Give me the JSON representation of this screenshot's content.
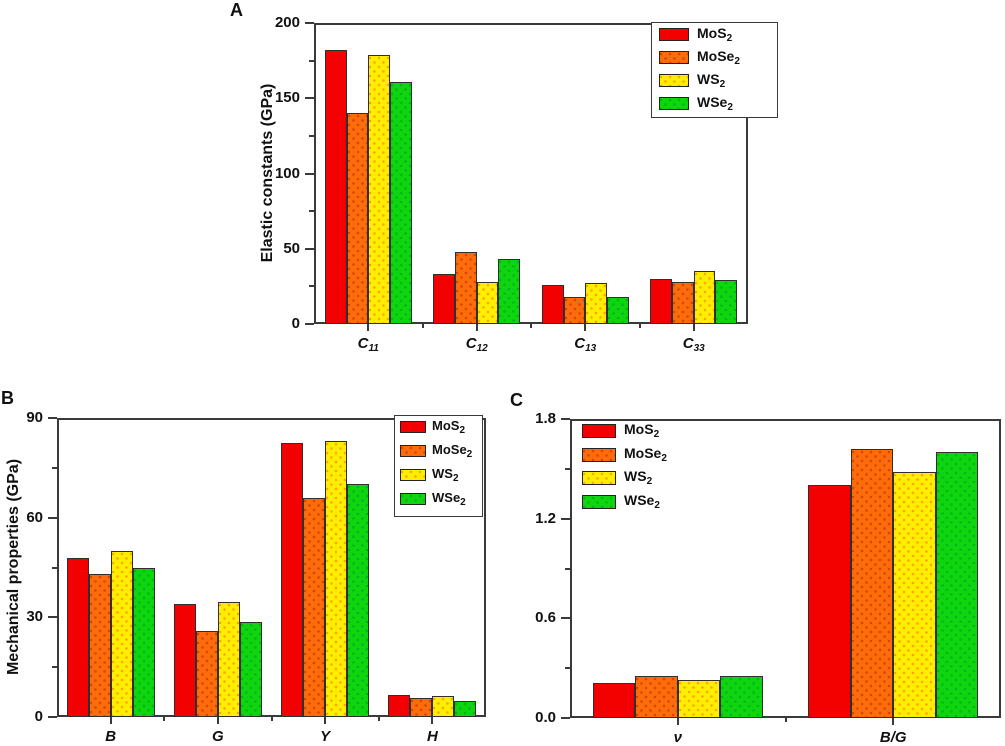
{
  "figure": {
    "axis_color": "#3a3a3a",
    "text_color": "#111111",
    "background": "#ffffff"
  },
  "chart_data": [
    {
      "panel": "A",
      "type": "bar",
      "title": "",
      "xlabel": "",
      "ylabel": "Elastic constants (GPa)",
      "ylim": [
        0,
        200
      ],
      "ytick_labels": [
        "0",
        "50",
        "100",
        "150",
        "200"
      ],
      "ytick_values": [
        0,
        50,
        100,
        150,
        200
      ],
      "yminor_values": [
        25,
        75,
        125,
        175
      ],
      "grid": false,
      "legend_pos": "upper-right",
      "legend_box": true,
      "categories": [
        {
          "base": "C",
          "sub": "11"
        },
        {
          "base": "C",
          "sub": "12"
        },
        {
          "base": "C",
          "sub": "13"
        },
        {
          "base": "C",
          "sub": "33"
        }
      ],
      "series": [
        {
          "name": {
            "base": "MoS",
            "sub": "2"
          },
          "color": "#f30000",
          "pattern": "solid",
          "dot_color": "",
          "values": [
            182,
            33,
            26,
            30
          ]
        },
        {
          "name": {
            "base": "MoSe",
            "sub": "2"
          },
          "color": "#fb6c0a",
          "pattern": "dots",
          "dot_color": "#dd3f00",
          "values": [
            140,
            48,
            18,
            28
          ]
        },
        {
          "name": {
            "base": "WS",
            "sub": "2"
          },
          "color": "#ffee00",
          "pattern": "dots",
          "dot_color": "#ffa200",
          "values": [
            179,
            28,
            27,
            35
          ]
        },
        {
          "name": {
            "base": "WSe",
            "sub": "2"
          },
          "color": "#0ed50e",
          "pattern": "dots",
          "dot_color": "#00b41e",
          "values": [
            161,
            43,
            18,
            29
          ]
        }
      ]
    },
    {
      "panel": "B",
      "type": "bar",
      "title": "",
      "xlabel": "",
      "ylabel": "Mechanical properties (GPa)",
      "ylim": [
        0,
        90
      ],
      "ytick_labels": [
        "0",
        "30",
        "60",
        "90"
      ],
      "ytick_values": [
        0,
        30,
        60,
        90
      ],
      "yminor_values": [
        15,
        45,
        75
      ],
      "grid": false,
      "legend_pos": "upper-right",
      "legend_box": true,
      "categories": [
        {
          "base": "B",
          "sub": ""
        },
        {
          "base": "G",
          "sub": ""
        },
        {
          "base": "Y",
          "sub": ""
        },
        {
          "base": "H",
          "sub": ""
        }
      ],
      "series": [
        {
          "name": {
            "base": "MoS",
            "sub": "2"
          },
          "color": "#f30000",
          "pattern": "solid",
          "dot_color": "",
          "values": [
            48,
            34,
            82.5,
            6.5
          ]
        },
        {
          "name": {
            "base": "MoSe",
            "sub": "2"
          },
          "color": "#fb6c0a",
          "pattern": "dots",
          "dot_color": "#dd3f00",
          "values": [
            43,
            26,
            66,
            5.7
          ]
        },
        {
          "name": {
            "base": "WS",
            "sub": "2"
          },
          "color": "#ffee00",
          "pattern": "dots",
          "dot_color": "#ffa200",
          "values": [
            50,
            34.5,
            83,
            6.3
          ]
        },
        {
          "name": {
            "base": "WSe",
            "sub": "2"
          },
          "color": "#0ed50e",
          "pattern": "dots",
          "dot_color": "#00b41e",
          "values": [
            45,
            28.5,
            70,
            4.8
          ]
        }
      ]
    },
    {
      "panel": "C",
      "type": "bar",
      "title": "",
      "xlabel": "",
      "ylabel": "",
      "ylim": [
        0,
        1.8
      ],
      "ytick_labels": [
        "0.0",
        "0.6",
        "1.2",
        "1.8"
      ],
      "ytick_values": [
        0,
        0.6,
        1.2,
        1.8
      ],
      "yminor_values": [
        0.3,
        0.9,
        1.5
      ],
      "grid": false,
      "legend_pos": "upper-left",
      "legend_box": false,
      "categories": [
        {
          "base": "ν",
          "sub": ""
        },
        {
          "base": "B/G",
          "sub": ""
        }
      ],
      "series": [
        {
          "name": {
            "base": "MoS",
            "sub": "2"
          },
          "color": "#f30000",
          "pattern": "solid",
          "dot_color": "",
          "values": [
            0.21,
            1.4
          ]
        },
        {
          "name": {
            "base": "MoSe",
            "sub": "2"
          },
          "color": "#fb6c0a",
          "pattern": "dots",
          "dot_color": "#dd3f00",
          "values": [
            0.25,
            1.62
          ]
        },
        {
          "name": {
            "base": "WS",
            "sub": "2"
          },
          "color": "#ffee00",
          "pattern": "dots",
          "dot_color": "#ffa200",
          "values": [
            0.23,
            1.48
          ]
        },
        {
          "name": {
            "base": "WSe",
            "sub": "2"
          },
          "color": "#0ed50e",
          "pattern": "dots",
          "dot_color": "#00b41e",
          "values": [
            0.25,
            1.6
          ]
        }
      ]
    }
  ]
}
